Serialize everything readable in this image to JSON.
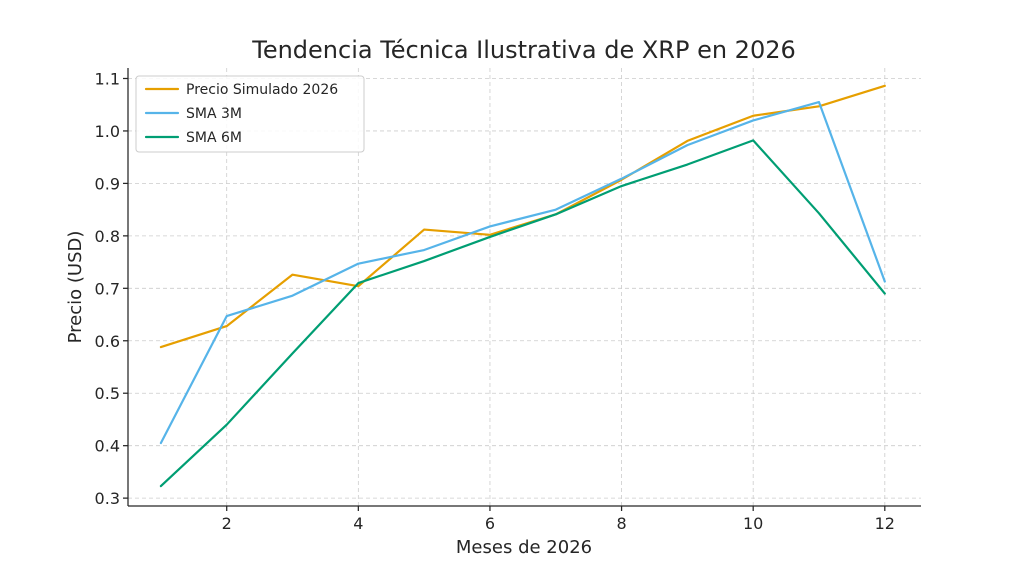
{
  "chart_data": {
    "type": "line",
    "title": "Tendencia Técnica Ilustrativa de XRP en 2026",
    "xlabel": "Meses de 2026",
    "ylabel": "Precio (USD)",
    "x": [
      1,
      2,
      3,
      4,
      5,
      6,
      7,
      8,
      9,
      10,
      11,
      12
    ],
    "xlim": [
      0.5,
      12.55
    ],
    "ylim": [
      0.285,
      1.12
    ],
    "xticks": [
      2,
      4,
      6,
      8,
      10,
      12
    ],
    "xtick_labels": [
      "2",
      "4",
      "6",
      "8",
      "10",
      "12"
    ],
    "yticks": [
      0.3,
      0.4,
      0.5,
      0.6,
      0.7,
      0.8,
      0.9,
      1.0,
      1.1
    ],
    "ytick_labels": [
      "0.3",
      "0.4",
      "0.5",
      "0.6",
      "0.7",
      "0.8",
      "0.9",
      "1.0",
      "1.1"
    ],
    "grid": true,
    "legend_position": "top-left",
    "series": [
      {
        "name": "Precio Simulado 2026",
        "color": "#E69F00",
        "values": [
          0.588,
          0.628,
          0.726,
          0.704,
          0.812,
          0.802,
          0.841,
          0.907,
          0.981,
          1.029,
          1.047,
          1.086
        ]
      },
      {
        "name": "SMA 3M",
        "color": "#56B4E9",
        "values": [
          0.405,
          0.647,
          0.686,
          0.747,
          0.773,
          0.818,
          0.85,
          0.909,
          0.973,
          1.02,
          1.055,
          0.713
        ]
      },
      {
        "name": "SMA 6M",
        "color": "#009E73",
        "values": [
          0.323,
          0.44,
          0.576,
          0.71,
          0.752,
          0.798,
          0.841,
          0.895,
          0.936,
          0.982,
          0.843,
          0.69
        ]
      }
    ]
  }
}
